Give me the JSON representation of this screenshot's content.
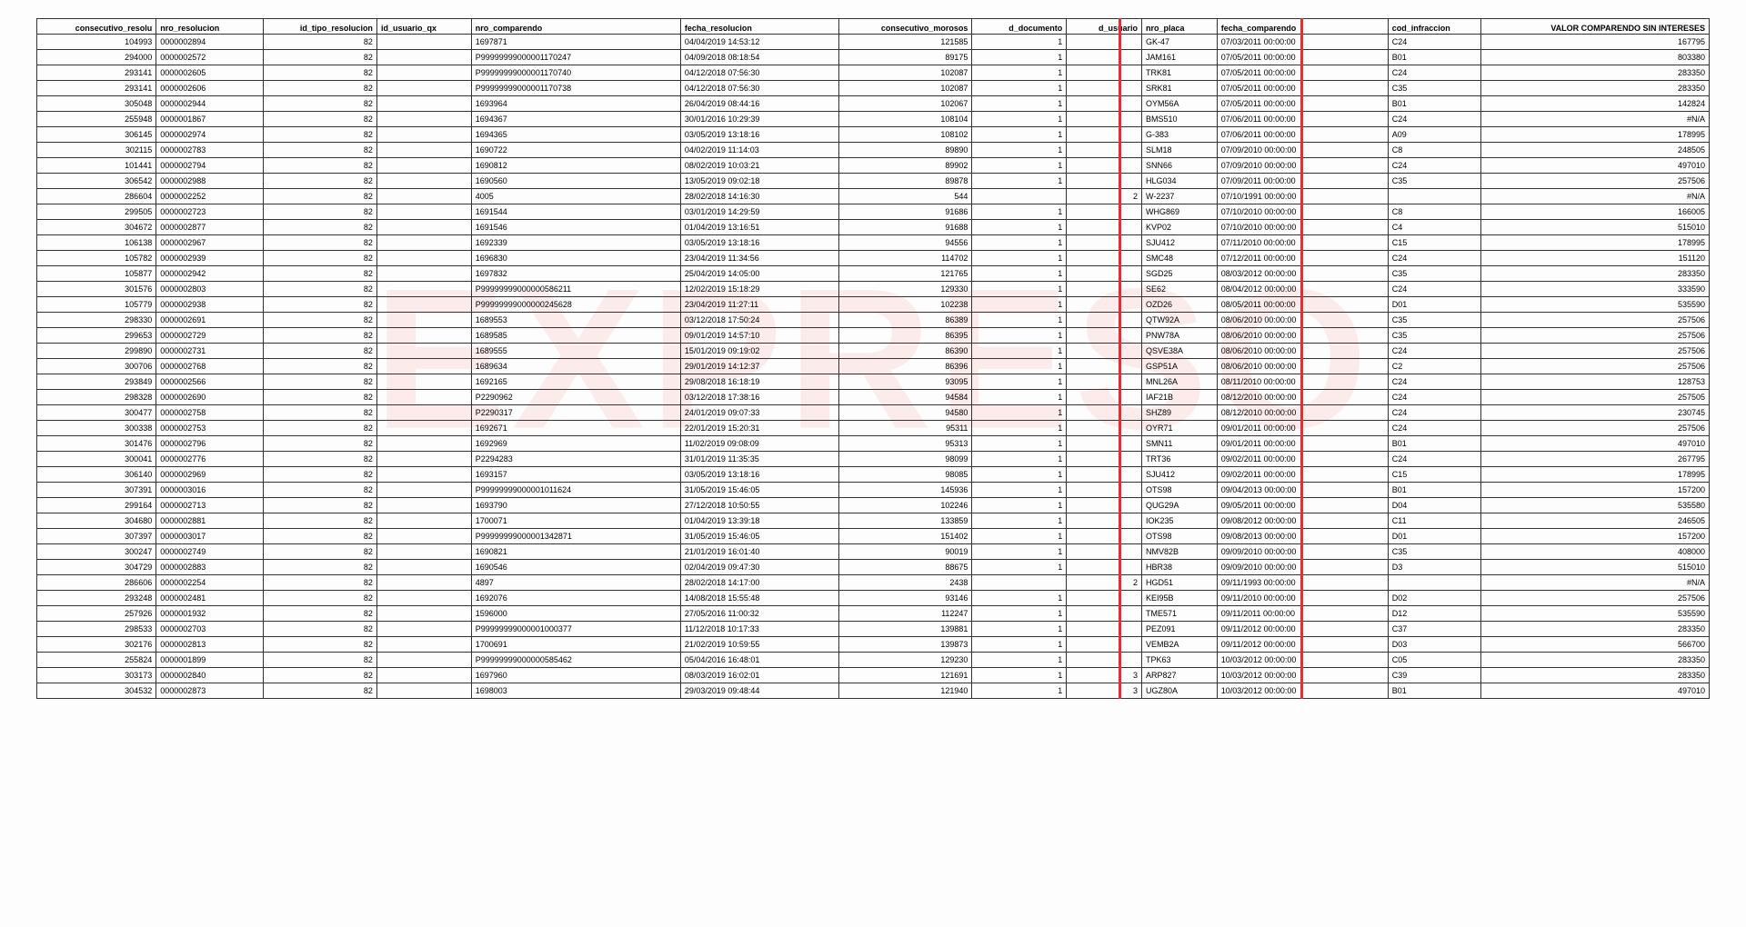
{
  "watermark_text": "EXPRESO",
  "red_line_color": "#e03030",
  "table": {
    "columns": [
      {
        "key": "consec",
        "label": "consecutivo_resolu"
      },
      {
        "key": "nro_res",
        "label": "nro_resolucion"
      },
      {
        "key": "id_tipo",
        "label": "id_tipo_resolucion"
      },
      {
        "key": "id_usu_qx",
        "label": "id_usuario_qx"
      },
      {
        "key": "nro_comp",
        "label": "nro_comparendo"
      },
      {
        "key": "fecha_res",
        "label": "fecha_resolucion"
      },
      {
        "key": "consec_mor",
        "label": "consecutivo_morosos"
      },
      {
        "key": "d_doc",
        "label": "d_documento"
      },
      {
        "key": "d_usu",
        "label": "d_usuario"
      },
      {
        "key": "placa",
        "label": "nro_placa"
      },
      {
        "key": "fecha_comp",
        "label": "fecha_comparendo"
      },
      {
        "key": "cod_inf",
        "label": "cod_infraccion"
      },
      {
        "key": "valor",
        "label": "VALOR COMPARENDO SIN INTERESES"
      }
    ],
    "rows": [
      [
        "104993",
        "0000002894",
        "82",
        "",
        "1697871",
        "04/04/2019 14:53:12",
        "121585",
        "1",
        "",
        "GK-47",
        "07/03/2011 00:00:00",
        "C24",
        "167795"
      ],
      [
        "294000",
        "0000002572",
        "82",
        "",
        "P99999999000001170247",
        "04/09/2018 08:18:54",
        "89175",
        "1",
        "",
        "JAM161",
        "07/05/2011 00:00:00",
        "B01",
        "803380"
      ],
      [
        "293141",
        "0000002605",
        "82",
        "",
        "P99999999000001170740",
        "04/12/2018 07:56:30",
        "102087",
        "1",
        "",
        "TRK81",
        "07/05/2011 00:00:00",
        "C24",
        "283350"
      ],
      [
        "293141",
        "0000002606",
        "82",
        "",
        "P99999999000001170738",
        "04/12/2018 07:56:30",
        "102087",
        "1",
        "",
        "SRK81",
        "07/05/2011 00:00:00",
        "C35",
        "283350"
      ],
      [
        "305048",
        "0000002944",
        "82",
        "",
        "1693964",
        "26/04/2019 08:44:16",
        "102067",
        "1",
        "",
        "OYM56A",
        "07/05/2011 00:00:00",
        "B01",
        "142824"
      ],
      [
        "255948",
        "0000001867",
        "82",
        "",
        "1694367",
        "30/01/2016 10:29:39",
        "108104",
        "1",
        "",
        "BMS510",
        "07/06/2011 00:00:00",
        "C24",
        "#N/A"
      ],
      [
        "306145",
        "0000002974",
        "82",
        "",
        "1694365",
        "03/05/2019 13:18:16",
        "108102",
        "1",
        "",
        "G-383",
        "07/06/2011 00:00:00",
        "A09",
        "178995"
      ],
      [
        "302115",
        "0000002783",
        "82",
        "",
        "1690722",
        "04/02/2019 11:14:03",
        "89890",
        "1",
        "",
        "SLM18",
        "07/09/2010 00:00:00",
        "C8",
        "248505"
      ],
      [
        "101441",
        "0000002794",
        "82",
        "",
        "1690812",
        "08/02/2019 10:03:21",
        "89902",
        "1",
        "",
        "SNN66",
        "07/09/2010 00:00:00",
        "C24",
        "497010"
      ],
      [
        "306542",
        "0000002988",
        "82",
        "",
        "1690560",
        "13/05/2019 09:02:18",
        "89878",
        "1",
        "",
        "HLG034",
        "07/09/2011 00:00:00",
        "C35",
        "257506"
      ],
      [
        "286604",
        "0000002252",
        "82",
        "",
        "4005",
        "28/02/2018 14:16:30",
        "544",
        "",
        "2",
        "W-2237",
        "07/10/1991 00:00:00",
        "",
        "#N/A"
      ],
      [
        "299505",
        "0000002723",
        "82",
        "",
        "1691544",
        "03/01/2019 14:29:59",
        "91686",
        "1",
        "",
        "WHG869",
        "07/10/2010 00:00:00",
        "C8",
        "166005"
      ],
      [
        "304672",
        "0000002877",
        "82",
        "",
        "1691546",
        "01/04/2019 13:16:51",
        "91688",
        "1",
        "",
        "KVP02",
        "07/10/2010 00:00:00",
        "C4",
        "515010"
      ],
      [
        "106138",
        "0000002967",
        "82",
        "",
        "1692339",
        "03/05/2019 13:18:16",
        "94556",
        "1",
        "",
        "SJU412",
        "07/11/2010 00:00:00",
        "C15",
        "178995"
      ],
      [
        "105782",
        "0000002939",
        "82",
        "",
        "1696830",
        "23/04/2019 11:34:56",
        "114702",
        "1",
        "",
        "SMC48",
        "07/12/2011 00:00:00",
        "C24",
        "151120"
      ],
      [
        "105877",
        "0000002942",
        "82",
        "",
        "1697832",
        "25/04/2019 14:05:00",
        "121765",
        "1",
        "",
        "SGD25",
        "08/03/2012 00:00:00",
        "C35",
        "283350"
      ],
      [
        "301576",
        "0000002803",
        "82",
        "",
        "P99999999000000586211",
        "12/02/2019 15:18:29",
        "129330",
        "1",
        "",
        "SE62",
        "08/04/2012 00:00:00",
        "C24",
        "333590"
      ],
      [
        "105779",
        "0000002938",
        "82",
        "",
        "P99999999000000245628",
        "23/04/2019 11:27:11",
        "102238",
        "1",
        "",
        "OZD26",
        "08/05/2011 00:00:00",
        "D01",
        "535590"
      ],
      [
        "298330",
        "0000002691",
        "82",
        "",
        "1689553",
        "03/12/2018 17:50:24",
        "86389",
        "1",
        "",
        "QTW92A",
        "08/06/2010 00:00:00",
        "C35",
        "257506"
      ],
      [
        "299653",
        "0000002729",
        "82",
        "",
        "1689585",
        "09/01/2019 14:57:10",
        "86395",
        "1",
        "",
        "PNW78A",
        "08/06/2010 00:00:00",
        "C35",
        "257506"
      ],
      [
        "299890",
        "0000002731",
        "82",
        "",
        "1689555",
        "15/01/2019 09:19:02",
        "86390",
        "1",
        "",
        "QSVE38A",
        "08/06/2010 00:00:00",
        "C24",
        "257506"
      ],
      [
        "300706",
        "0000002768",
        "82",
        "",
        "1689634",
        "29/01/2019 14:12:37",
        "86396",
        "1",
        "",
        "GSP51A",
        "08/06/2010 00:00:00",
        "C2",
        "257506"
      ],
      [
        "293849",
        "0000002566",
        "82",
        "",
        "1692165",
        "29/08/2018 16:18:19",
        "93095",
        "1",
        "",
        "MNL26A",
        "08/11/2010 00:00:00",
        "C24",
        "128753"
      ],
      [
        "298328",
        "0000002690",
        "82",
        "",
        "P2290962",
        "03/12/2018 17:38:16",
        "94584",
        "1",
        "",
        "IAF21B",
        "08/12/2010 00:00:00",
        "C24",
        "257505"
      ],
      [
        "300477",
        "0000002758",
        "82",
        "",
        "P2290317",
        "24/01/2019 09:07:33",
        "94580",
        "1",
        "",
        "SHZ89",
        "08/12/2010 00:00:00",
        "C24",
        "230745"
      ],
      [
        "300338",
        "0000002753",
        "82",
        "",
        "1692671",
        "22/01/2019 15:20:31",
        "95311",
        "1",
        "",
        "OYR71",
        "09/01/2011 00:00:00",
        "C24",
        "257506"
      ],
      [
        "301476",
        "0000002796",
        "82",
        "",
        "1692969",
        "11/02/2019 09:08:09",
        "95313",
        "1",
        "",
        "SMN11",
        "09/01/2011 00:00:00",
        "B01",
        "497010"
      ],
      [
        "300041",
        "0000002776",
        "82",
        "",
        "P2294283",
        "31/01/2019 11:35:35",
        "98099",
        "1",
        "",
        "TRT36",
        "09/02/2011 00:00:00",
        "C24",
        "267795"
      ],
      [
        "306140",
        "0000002969",
        "82",
        "",
        "1693157",
        "03/05/2019 13:18:16",
        "98085",
        "1",
        "",
        "SJU412",
        "09/02/2011 00:00:00",
        "C15",
        "178995"
      ],
      [
        "307391",
        "0000003016",
        "82",
        "",
        "P99999999000001011624",
        "31/05/2019 15:46:05",
        "145936",
        "1",
        "",
        "OTS98",
        "09/04/2013 00:00:00",
        "B01",
        "157200"
      ],
      [
        "299164",
        "0000002713",
        "82",
        "",
        "1693790",
        "27/12/2018 10:50:55",
        "102246",
        "1",
        "",
        "QUG29A",
        "09/05/2011 00:00:00",
        "D04",
        "535580"
      ],
      [
        "304680",
        "0000002881",
        "82",
        "",
        "1700071",
        "01/04/2019 13:39:18",
        "133859",
        "1",
        "",
        "IOK235",
        "09/08/2012 00:00:00",
        "C11",
        "246505"
      ],
      [
        "307397",
        "0000003017",
        "82",
        "",
        "P99999999000001342871",
        "31/05/2019 15:46:05",
        "151402",
        "1",
        "",
        "OTS98",
        "09/08/2013 00:00:00",
        "D01",
        "157200"
      ],
      [
        "300247",
        "0000002749",
        "82",
        "",
        "1690821",
        "21/01/2019 16:01:40",
        "90019",
        "1",
        "",
        "NMV82B",
        "09/09/2010 00:00:00",
        "C35",
        "408000"
      ],
      [
        "304729",
        "0000002883",
        "82",
        "",
        "1690546",
        "02/04/2019 09:47:30",
        "88675",
        "1",
        "",
        "HBR38",
        "09/09/2010 00:00:00",
        "D3",
        "515010"
      ],
      [
        "286606",
        "0000002254",
        "82",
        "",
        "4897",
        "28/02/2018 14:17:00",
        "2438",
        "",
        "2",
        "HGD51",
        "09/11/1993 00:00:00",
        "",
        "#N/A"
      ],
      [
        "293248",
        "0000002481",
        "82",
        "",
        "1692076",
        "14/08/2018 15:55:48",
        "93146",
        "1",
        "",
        "KEI95B",
        "09/11/2010 00:00:00",
        "D02",
        "257506"
      ],
      [
        "257926",
        "0000001932",
        "82",
        "",
        "1596000",
        "27/05/2016 11:00:32",
        "112247",
        "1",
        "",
        "TME571",
        "09/11/2011 00:00:00",
        "D12",
        "535590"
      ],
      [
        "298533",
        "0000002703",
        "82",
        "",
        "P99999999000001000377",
        "11/12/2018 10:17:33",
        "139881",
        "1",
        "",
        "PEZ091",
        "09/11/2012 00:00:00",
        "C37",
        "283350"
      ],
      [
        "302176",
        "0000002813",
        "82",
        "",
        "1700691",
        "21/02/2019 10:59:55",
        "139873",
        "1",
        "",
        "VEMB2A",
        "09/11/2012 00:00:00",
        "D03",
        "566700"
      ],
      [
        "255824",
        "0000001899",
        "82",
        "",
        "P99999999000000585462",
        "05/04/2016 16:48:01",
        "129230",
        "1",
        "",
        "TPK63",
        "10/03/2012 00:00:00",
        "C05",
        "283350"
      ],
      [
        "303173",
        "0000002840",
        "82",
        "",
        "1697960",
        "08/03/2019 16:02:01",
        "121691",
        "1",
        "3",
        "ARP827",
        "10/03/2012 00:00:00",
        "C39",
        "283350"
      ],
      [
        "304532",
        "0000002873",
        "82",
        "",
        "1698003",
        "29/03/2019 09:48:44",
        "121940",
        "1",
        "3",
        "UGZ80A",
        "10/03/2012 00:00:00",
        "B01",
        "497010"
      ]
    ]
  }
}
